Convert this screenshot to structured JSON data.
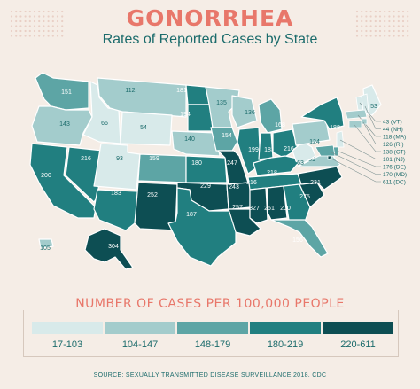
{
  "title": "GONORRHEA",
  "subtitle": "Rates of Reported Cases by State",
  "legend": {
    "title": "NUMBER OF CASES PER 100,000 PEOPLE",
    "bins": [
      {
        "label": "17-103",
        "color": "#d8eaea"
      },
      {
        "label": "104-147",
        "color": "#a3cccc"
      },
      {
        "label": "148-179",
        "color": "#5da5a5"
      },
      {
        "label": "180-219",
        "color": "#217f80"
      },
      {
        "label": "220-611",
        "color": "#0d4e53"
      }
    ]
  },
  "source": "SOURCE: SEXUALLY TRANSMITTED DISEASE SURVEILLANCE 2018, CDC",
  "states": [
    {
      "code": "WA",
      "value": "151"
    },
    {
      "code": "OR",
      "value": "143"
    },
    {
      "code": "CA",
      "value": "200"
    },
    {
      "code": "NV",
      "value": "216"
    },
    {
      "code": "ID",
      "value": "66"
    },
    {
      "code": "MT",
      "value": "112"
    },
    {
      "code": "WY",
      "value": "54"
    },
    {
      "code": "UT",
      "value": "93"
    },
    {
      "code": "AZ",
      "value": "183"
    },
    {
      "code": "CO",
      "value": "159"
    },
    {
      "code": "NM",
      "value": "252"
    },
    {
      "code": "ND",
      "value": "181"
    },
    {
      "code": "SD",
      "value": "194"
    },
    {
      "code": "NE",
      "value": "140"
    },
    {
      "code": "KS",
      "value": "180"
    },
    {
      "code": "OK",
      "value": "229"
    },
    {
      "code": "TX",
      "value": "187"
    },
    {
      "code": "MN",
      "value": "135"
    },
    {
      "code": "IA",
      "value": "154"
    },
    {
      "code": "MO",
      "value": "247"
    },
    {
      "code": "AR",
      "value": "243"
    },
    {
      "code": "LA",
      "value": "257"
    },
    {
      "code": "WI",
      "value": "136"
    },
    {
      "code": "IL",
      "value": "199"
    },
    {
      "code": "MI",
      "value": "168"
    },
    {
      "code": "IN",
      "value": "183"
    },
    {
      "code": "OH",
      "value": "216"
    },
    {
      "code": "KY",
      "value": "218"
    },
    {
      "code": "TN",
      "value": "216"
    },
    {
      "code": "MS",
      "value": "327"
    },
    {
      "code": "AL",
      "value": "261"
    },
    {
      "code": "GA",
      "value": "200"
    },
    {
      "code": "FL",
      "value": "156"
    },
    {
      "code": "SC",
      "value": "275"
    },
    {
      "code": "NC",
      "value": "231"
    },
    {
      "code": "VA",
      "value": "139"
    },
    {
      "code": "WV",
      "value": "63"
    },
    {
      "code": "PA",
      "value": "124"
    },
    {
      "code": "NY",
      "value": "188"
    },
    {
      "code": "ME",
      "value": "53"
    },
    {
      "code": "AK",
      "value": "304"
    },
    {
      "code": "HI",
      "value": "105"
    }
  ],
  "callouts": [
    {
      "code": "VT",
      "text": "43 (VT)"
    },
    {
      "code": "NH",
      "text": "44 (NH)"
    },
    {
      "code": "MA",
      "text": "118 (MA)"
    },
    {
      "code": "RI",
      "text": "126 (RI)"
    },
    {
      "code": "CT",
      "text": "138 (CT)"
    },
    {
      "code": "NJ",
      "text": "101 (NJ)"
    },
    {
      "code": "DE",
      "text": "176 (DE)"
    },
    {
      "code": "MD",
      "text": "170 (MD)"
    },
    {
      "code": "DC",
      "text": "611 (DC)"
    }
  ]
}
